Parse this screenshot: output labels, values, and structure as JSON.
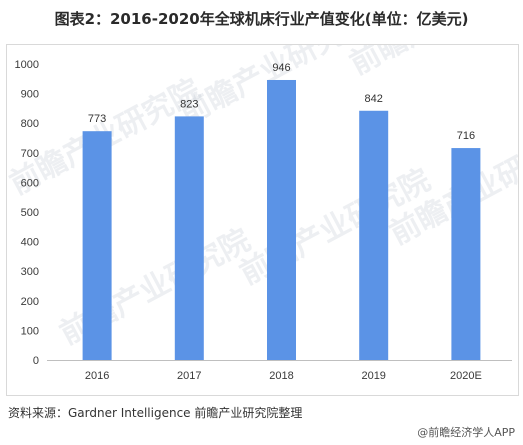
{
  "title": "图表2：2016-2020年全球机床行业产值变化(单位：亿美元)",
  "source": "资料来源：Gardner Intelligence 前瞻产业研究院整理",
  "footer": "@前瞻经济学人APP",
  "watermark": "前瞻产业研究院",
  "colors": {
    "bar": "#5b93e6",
    "axis": "#bfbfbf"
  },
  "chart_data": {
    "type": "bar",
    "categories": [
      "2016",
      "2017",
      "2018",
      "2019",
      "2020E"
    ],
    "values": [
      773,
      823,
      946,
      842,
      716
    ],
    "ylim": [
      0,
      1000
    ],
    "yticks": [
      0,
      100,
      200,
      300,
      400,
      500,
      600,
      700,
      800,
      900,
      1000
    ],
    "grid": false,
    "title": "",
    "xlabel": "",
    "ylabel": ""
  }
}
